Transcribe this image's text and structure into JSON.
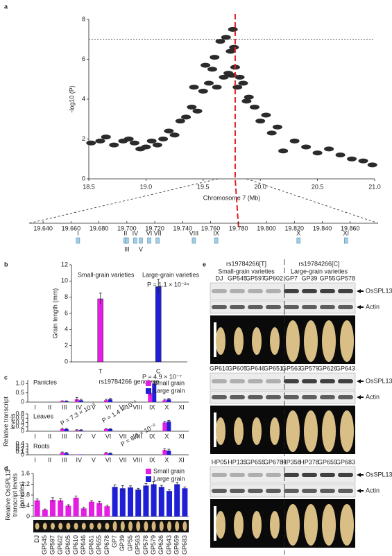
{
  "panel_labels": [
    "a",
    "b",
    "c",
    "d",
    "e"
  ],
  "chart_data": [
    {
      "type": "scatter",
      "xlabel": "Chromosome 7 (Mb)",
      "ylabel": "-log10 (P)",
      "color": "#2b2b2b",
      "x": [
        18.52,
        18.6,
        18.65,
        18.72,
        18.8,
        18.85,
        18.9,
        18.95,
        19.0,
        19.05,
        19.1,
        19.15,
        19.2,
        19.25,
        19.3,
        19.35,
        19.4,
        19.42,
        19.45,
        19.5,
        19.52,
        19.55,
        19.58,
        19.6,
        19.62,
        19.65,
        19.68,
        19.7,
        19.72,
        19.74,
        19.75,
        19.76,
        19.77,
        19.78,
        19.8,
        19.82,
        19.85,
        19.88,
        19.9,
        19.95,
        20.0,
        20.05,
        20.1,
        20.15,
        20.2,
        20.3,
        20.4,
        20.5,
        20.6,
        20.7,
        20.8,
        20.9,
        20.98
      ],
      "y": [
        1.8,
        1.9,
        2.1,
        1.7,
        1.9,
        2.0,
        1.8,
        1.5,
        1.6,
        1.9,
        1.7,
        2.0,
        2.4,
        2.2,
        2.9,
        3.1,
        3.6,
        4.6,
        3.4,
        4.4,
        5.7,
        4.8,
        5.5,
        6.1,
        4.6,
        6.9,
        5.1,
        7.1,
        5.3,
        6.4,
        5.2,
        7.5,
        6.6,
        5.6,
        4.6,
        5.1,
        4.8,
        3.9,
        4.1,
        3.6,
        2.9,
        3.2,
        2.3,
        2.6,
        1.4,
        1.9,
        1.6,
        1.3,
        1.5,
        1.2,
        1.0,
        0.9,
        0.7
      ],
      "xlim": [
        18.5,
        21.0
      ],
      "xticks": [
        18.5,
        {
          "value": 19,
          "label": "19.0"
        },
        19.5,
        {
          "value": 20,
          "label": "20.0"
        },
        20.5,
        {
          "value": 21,
          "label": "21.0"
        }
      ],
      "ylim": [
        0,
        8
      ],
      "yticks": [
        0,
        2,
        4,
        6,
        8
      ],
      "threshold": 7,
      "marker_x": 19.78
    },
    {
      "type": "bar",
      "categories": [
        "T",
        "C"
      ],
      "values": [
        7.8,
        9.3
      ],
      "errors": [
        0.7,
        0.9
      ],
      "colors": [
        "#e41ee4",
        "#1f1fd6"
      ],
      "ylim": [
        0,
        12
      ],
      "yticks": [
        0,
        2,
        4,
        6,
        8,
        10,
        12
      ],
      "ylabel": "Grain length (mm)",
      "xlabel": "rs19784266 genotype",
      "annotations": [
        "Small-grain varieties",
        "Large-grain varieties",
        "P = 1.1 × 10⁻²⁴"
      ]
    },
    {
      "type": "grouped_bar",
      "title": "Panicles",
      "categories": [
        "I",
        "II",
        "III",
        "IV",
        "V",
        "VI",
        "VII",
        "VIII",
        "IX",
        "X",
        "XI"
      ],
      "series": [
        {
          "name": "Small grain",
          "color": "#e41ee4",
          "values": [
            0,
            0,
            0.05,
            0.15,
            0,
            0.1,
            0,
            0,
            0.5,
            0.1,
            0
          ],
          "errors": [
            0,
            0,
            0.02,
            0.1,
            0,
            0.05,
            0,
            0,
            0.15,
            0.05,
            0
          ]
        },
        {
          "name": "Large grain",
          "color": "#1f1fd6",
          "values": [
            0,
            0,
            0.05,
            0.1,
            0,
            0.15,
            0,
            0,
            1.0,
            0.15,
            0
          ],
          "errors": [
            0,
            0,
            0.02,
            0.05,
            0,
            0.05,
            0,
            0,
            0.1,
            0.05,
            0
          ]
        }
      ],
      "ylim": [
        0,
        1.2
      ],
      "yticks": [
        0,
        0.5,
        {
          "value": 1,
          "label": "1.0"
        }
      ],
      "annotations": [
        "P = 4.9 × 10⁻⁷"
      ]
    },
    {
      "type": "grouped_bar",
      "title": "Leaves",
      "ylabel": [
        "Relative transcript",
        "levels"
      ],
      "categories": [
        "I",
        "II",
        "III",
        "IV",
        "V",
        "VI",
        "VII",
        "VIII",
        "IX",
        "X",
        "XI"
      ],
      "series": [
        {
          "color": "#e41ee4",
          "values": [
            0,
            0,
            0.1,
            0.05,
            0,
            0.1,
            0,
            0,
            0,
            0.4,
            0
          ],
          "errors": [
            0,
            0,
            0.03,
            0.02,
            0,
            0.02,
            0,
            0,
            0,
            0.05,
            0
          ]
        },
        {
          "color": "#1f1fd6",
          "values": [
            0,
            0,
            0.1,
            0.05,
            0,
            0.1,
            0,
            0,
            0,
            0.45,
            0
          ],
          "errors": [
            0,
            0,
            0.03,
            0.02,
            0,
            0.02,
            0,
            0,
            0,
            0.05,
            0
          ]
        }
      ],
      "ylim": [
        0,
        0.8
      ],
      "yticks": [
        0,
        0.2,
        0.4,
        0.6,
        0.8
      ],
      "annotations": [
        "P = 7.3 × 10⁻²",
        "P = 1.4 × 10⁻¹"
      ]
    },
    {
      "type": "grouped_bar",
      "title": "Roots",
      "categories": [
        "I",
        "II",
        "III",
        "IV",
        "V",
        "VI",
        "VII",
        "VIII",
        "IX",
        "X",
        "XI"
      ],
      "series": [
        {
          "color": "#e41ee4",
          "values": [
            0,
            0,
            0.08,
            0.01,
            0,
            0.06,
            0,
            0,
            0,
            0.17,
            0
          ],
          "errors": [
            0,
            0,
            0.02,
            0,
            0,
            0.02,
            0,
            0,
            0,
            0.05,
            0
          ]
        },
        {
          "color": "#1f1fd6",
          "values": [
            0,
            0,
            0.06,
            0.01,
            0,
            0.05,
            0,
            0,
            0,
            0.15,
            0
          ],
          "errors": [
            0,
            0,
            0.02,
            0,
            0,
            0.02,
            0,
            0,
            0,
            0.05,
            0
          ]
        }
      ],
      "ylim": [
        0,
        0.4
      ],
      "yticks": [
        0,
        0.1,
        0.2,
        0.3,
        0.4
      ],
      "annotations": [
        "P = 8.0 × 10⁻²"
      ]
    },
    {
      "type": "bar",
      "ylabel": [
        "Relative OsSPL13",
        "transcript levels",
        "(panicles)"
      ],
      "categories": [
        "DJ",
        "GP545",
        "GP597",
        "GP602",
        "GP605",
        "GP610",
        "GP646",
        "GP651",
        "GP655",
        "GP678",
        "GP7",
        "GP39",
        "GP55",
        "GP563",
        "GP578",
        "GP579",
        "GP626",
        "GP643",
        "GP659",
        "GP683"
      ],
      "series": [
        {
          "name": "Small grain",
          "color": "#e41ee4",
          "values": [
            0.6,
            0.25,
            0.62,
            0.6,
            0.4,
            0.7,
            0.3,
            0.55,
            0.5,
            0.38,
            null,
            null,
            null,
            null,
            null,
            null,
            null,
            null,
            null,
            null
          ],
          "errors": [
            0.05,
            0.03,
            0.08,
            0.06,
            0.04,
            0.06,
            0.05,
            0.04,
            0.06,
            0.04,
            null,
            null,
            null,
            null,
            null,
            null,
            null,
            null,
            null,
            null
          ]
        },
        {
          "name": "Large grain",
          "color": "#1f1fd6",
          "values": [
            null,
            null,
            null,
            null,
            null,
            null,
            null,
            null,
            null,
            null,
            1.1,
            1.05,
            1.08,
            1.0,
            1.15,
            1.2,
            1.1,
            0.95,
            1.2,
            1.05
          ],
          "errors": [
            null,
            null,
            null,
            null,
            null,
            null,
            null,
            null,
            null,
            null,
            0.08,
            0.1,
            0.06,
            0.05,
            0.08,
            0.1,
            0.06,
            0.05,
            0.08,
            0.05
          ]
        }
      ],
      "ylim": [
        0,
        1.6
      ],
      "yticks": [
        0,
        0.4,
        0.8,
        1.2,
        1.6
      ]
    }
  ],
  "gene_track": {
    "xlim": [
      19.63,
      19.88
    ],
    "xticks": [
      {
        "value": 19.64,
        "label": "19.640"
      },
      {
        "value": 19.66,
        "label": "19.660"
      },
      {
        "value": 19.68,
        "label": "19.680"
      },
      {
        "value": 19.7,
        "label": "19.700"
      },
      {
        "value": 19.72,
        "label": "19.720"
      },
      {
        "value": 19.74,
        "label": "19.740"
      },
      {
        "value": 19.76,
        "label": "19.760"
      },
      {
        "value": 19.78,
        "label": "19.780"
      },
      {
        "value": 19.8,
        "label": "19.800"
      },
      {
        "value": 19.82,
        "label": "19.820"
      },
      {
        "value": 19.84,
        "label": "19.840"
      },
      {
        "value": 19.86,
        "label": "19.860"
      }
    ],
    "genes": [
      {
        "name": "I",
        "position": 19.665
      },
      {
        "name": "II",
        "position": 19.699
      },
      {
        "name": "III",
        "position": 19.7
      },
      {
        "name": "IV",
        "position": 19.706
      },
      {
        "name": "V",
        "position": 19.71
      },
      {
        "name": "VI",
        "position": 19.716
      },
      {
        "name": "VII",
        "position": 19.722
      },
      {
        "name": "VIII",
        "position": 19.748
      },
      {
        "name": "IX",
        "position": 19.764
      },
      {
        "name": "X",
        "position": 19.823
      },
      {
        "name": "XI",
        "position": 19.857
      }
    ]
  },
  "panel_e": {
    "header": {
      "left_snp": "rs19784266[T]",
      "left_group": "Small-grain varieties",
      "right_snp": "rs19784266[C]",
      "right_group": "Large-grain varieties"
    },
    "blocks": [
      {
        "lanes": [
          "DJ",
          "GP545",
          "GP597",
          "GP602",
          "GP7",
          "GP39",
          "GP55",
          "GP578"
        ],
        "bands": [
          "OsSPL13",
          "Actin"
        ]
      },
      {
        "lanes": [
          "GP610",
          "GP605",
          "GP646",
          "GP651",
          "GP563",
          "GP579",
          "GP626",
          "GP643"
        ],
        "bands": [
          "OsSPL13",
          "Actin"
        ]
      },
      {
        "lanes": [
          "HP05",
          "HP135",
          "GP655",
          "GP678",
          "HP358",
          "HP378",
          "GP659",
          "GP683"
        ],
        "bands": [
          "OsSPL13",
          "Actin"
        ]
      }
    ]
  }
}
